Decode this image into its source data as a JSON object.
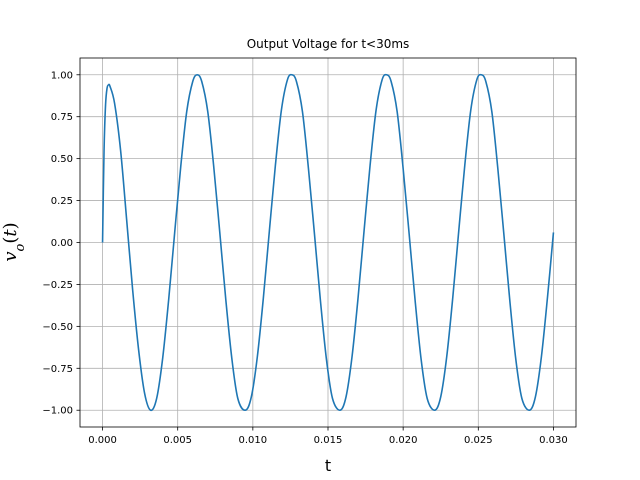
{
  "chart_data": {
    "type": "line",
    "title": "Output Voltage for t<30ms",
    "xlabel": "t",
    "ylabel": "v_o(t)",
    "xlim": [
      -0.0015,
      0.0315
    ],
    "ylim": [
      -1.1,
      1.1
    ],
    "xticks": [
      "0.000",
      "0.005",
      "0.010",
      "0.015",
      "0.020",
      "0.025",
      "0.030"
    ],
    "xtick_values": [
      0,
      0.005,
      0.01,
      0.015,
      0.02,
      0.025,
      0.03
    ],
    "yticks": [
      "−1.00",
      "−0.75",
      "−0.50",
      "−0.25",
      "0.00",
      "0.25",
      "0.50",
      "0.75",
      "1.00"
    ],
    "ytick_values": [
      -1,
      -0.75,
      -0.5,
      -0.25,
      0,
      0.25,
      0.5,
      0.75,
      1
    ],
    "grid": true,
    "series": [
      {
        "color": "#1f77b4",
        "points": [
          [
            0.0,
            0.0
          ],
          [
            0.0001,
            0.55
          ],
          [
            0.0002,
            0.82
          ],
          [
            0.0003,
            0.92
          ],
          [
            0.0004,
            0.94
          ],
          [
            0.0005,
            0.93
          ],
          [
            0.0008,
            0.83
          ],
          [
            0.0012,
            0.55
          ],
          [
            0.0016,
            0.14
          ],
          [
            0.002,
            -0.28
          ],
          [
            0.0024,
            -0.64
          ],
          [
            0.0028,
            -0.9
          ],
          [
            0.0032,
            -1.0
          ],
          [
            0.0036,
            -0.93
          ],
          [
            0.004,
            -0.69
          ],
          [
            0.0044,
            -0.34
          ],
          [
            0.0048,
            0.06
          ],
          [
            0.0052,
            0.45
          ],
          [
            0.0056,
            0.78
          ],
          [
            0.006,
            0.96
          ],
          [
            0.0063,
            1.0
          ],
          [
            0.0066,
            0.96
          ],
          [
            0.007,
            0.78
          ],
          [
            0.0074,
            0.45
          ],
          [
            0.0078,
            0.06
          ],
          [
            0.0082,
            -0.34
          ],
          [
            0.0086,
            -0.69
          ],
          [
            0.009,
            -0.93
          ],
          [
            0.0095,
            -1.0
          ],
          [
            0.0099,
            -0.92
          ],
          [
            0.0103,
            -0.68
          ],
          [
            0.0107,
            -0.33
          ],
          [
            0.0111,
            0.07
          ],
          [
            0.0115,
            0.46
          ],
          [
            0.0119,
            0.79
          ],
          [
            0.0123,
            0.97
          ],
          [
            0.0126,
            1.0
          ],
          [
            0.0129,
            0.96
          ],
          [
            0.0133,
            0.78
          ],
          [
            0.0137,
            0.44
          ],
          [
            0.0141,
            0.05
          ],
          [
            0.0145,
            -0.35
          ],
          [
            0.0149,
            -0.7
          ],
          [
            0.0153,
            -0.93
          ],
          [
            0.0158,
            -1.0
          ],
          [
            0.0162,
            -0.92
          ],
          [
            0.0166,
            -0.68
          ],
          [
            0.017,
            -0.33
          ],
          [
            0.0174,
            0.07
          ],
          [
            0.0178,
            0.46
          ],
          [
            0.0182,
            0.79
          ],
          [
            0.0186,
            0.97
          ],
          [
            0.0189,
            1.0
          ],
          [
            0.0192,
            0.96
          ],
          [
            0.0196,
            0.78
          ],
          [
            0.02,
            0.44
          ],
          [
            0.0204,
            0.05
          ],
          [
            0.0208,
            -0.35
          ],
          [
            0.0212,
            -0.7
          ],
          [
            0.0216,
            -0.93
          ],
          [
            0.0221,
            -1.0
          ],
          [
            0.0225,
            -0.92
          ],
          [
            0.0229,
            -0.68
          ],
          [
            0.0233,
            -0.33
          ],
          [
            0.0237,
            0.07
          ],
          [
            0.0241,
            0.46
          ],
          [
            0.0245,
            0.79
          ],
          [
            0.0249,
            0.97
          ],
          [
            0.0252,
            1.0
          ],
          [
            0.0255,
            0.96
          ],
          [
            0.0259,
            0.78
          ],
          [
            0.0263,
            0.44
          ],
          [
            0.0267,
            0.05
          ],
          [
            0.0271,
            -0.35
          ],
          [
            0.0275,
            -0.7
          ],
          [
            0.0279,
            -0.93
          ],
          [
            0.0284,
            -1.0
          ],
          [
            0.0288,
            -0.92
          ],
          [
            0.0292,
            -0.68
          ],
          [
            0.0296,
            -0.33
          ],
          [
            0.03,
            0.06
          ]
        ]
      }
    ]
  }
}
